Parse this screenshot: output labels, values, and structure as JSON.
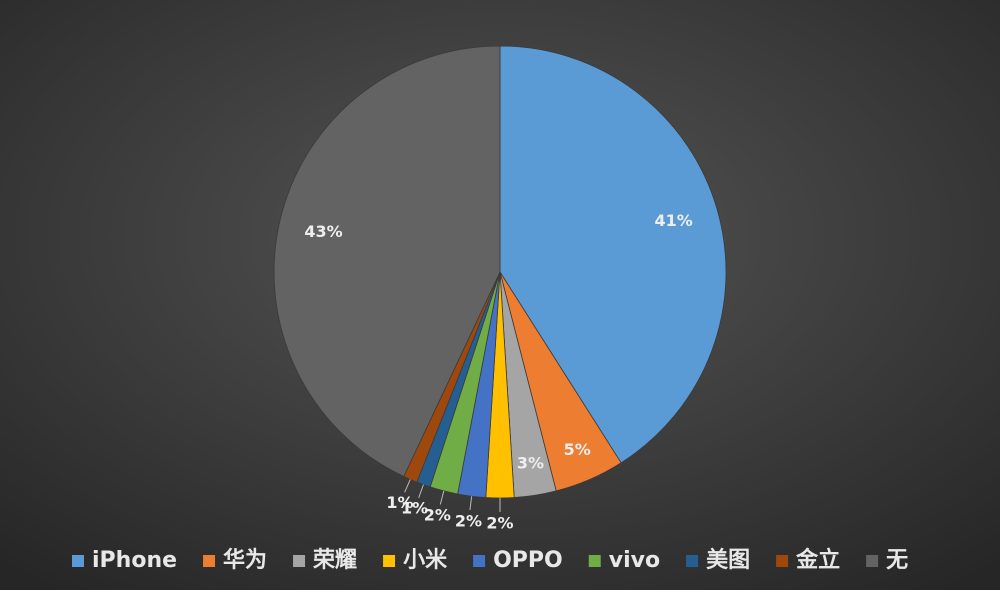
{
  "chart_data": {
    "type": "pie",
    "categories": [
      "iPhone",
      "华为",
      "荣耀",
      "小米",
      "OPPO",
      "vivo",
      "美图",
      "金立",
      "无"
    ],
    "values": [
      41,
      5,
      3,
      2,
      2,
      2,
      1,
      1,
      43
    ],
    "value_labels": [
      "41%",
      "5%",
      "3%",
      "2%",
      "2%",
      "2%",
      "1%",
      "1%",
      "43%"
    ],
    "colors": [
      "#5b9bd5",
      "#ed7d31",
      "#a5a5a5",
      "#ffc000",
      "#4472c4",
      "#70ad47",
      "#255e91",
      "#9e480e",
      "#636363"
    ],
    "legend": "bottom"
  }
}
